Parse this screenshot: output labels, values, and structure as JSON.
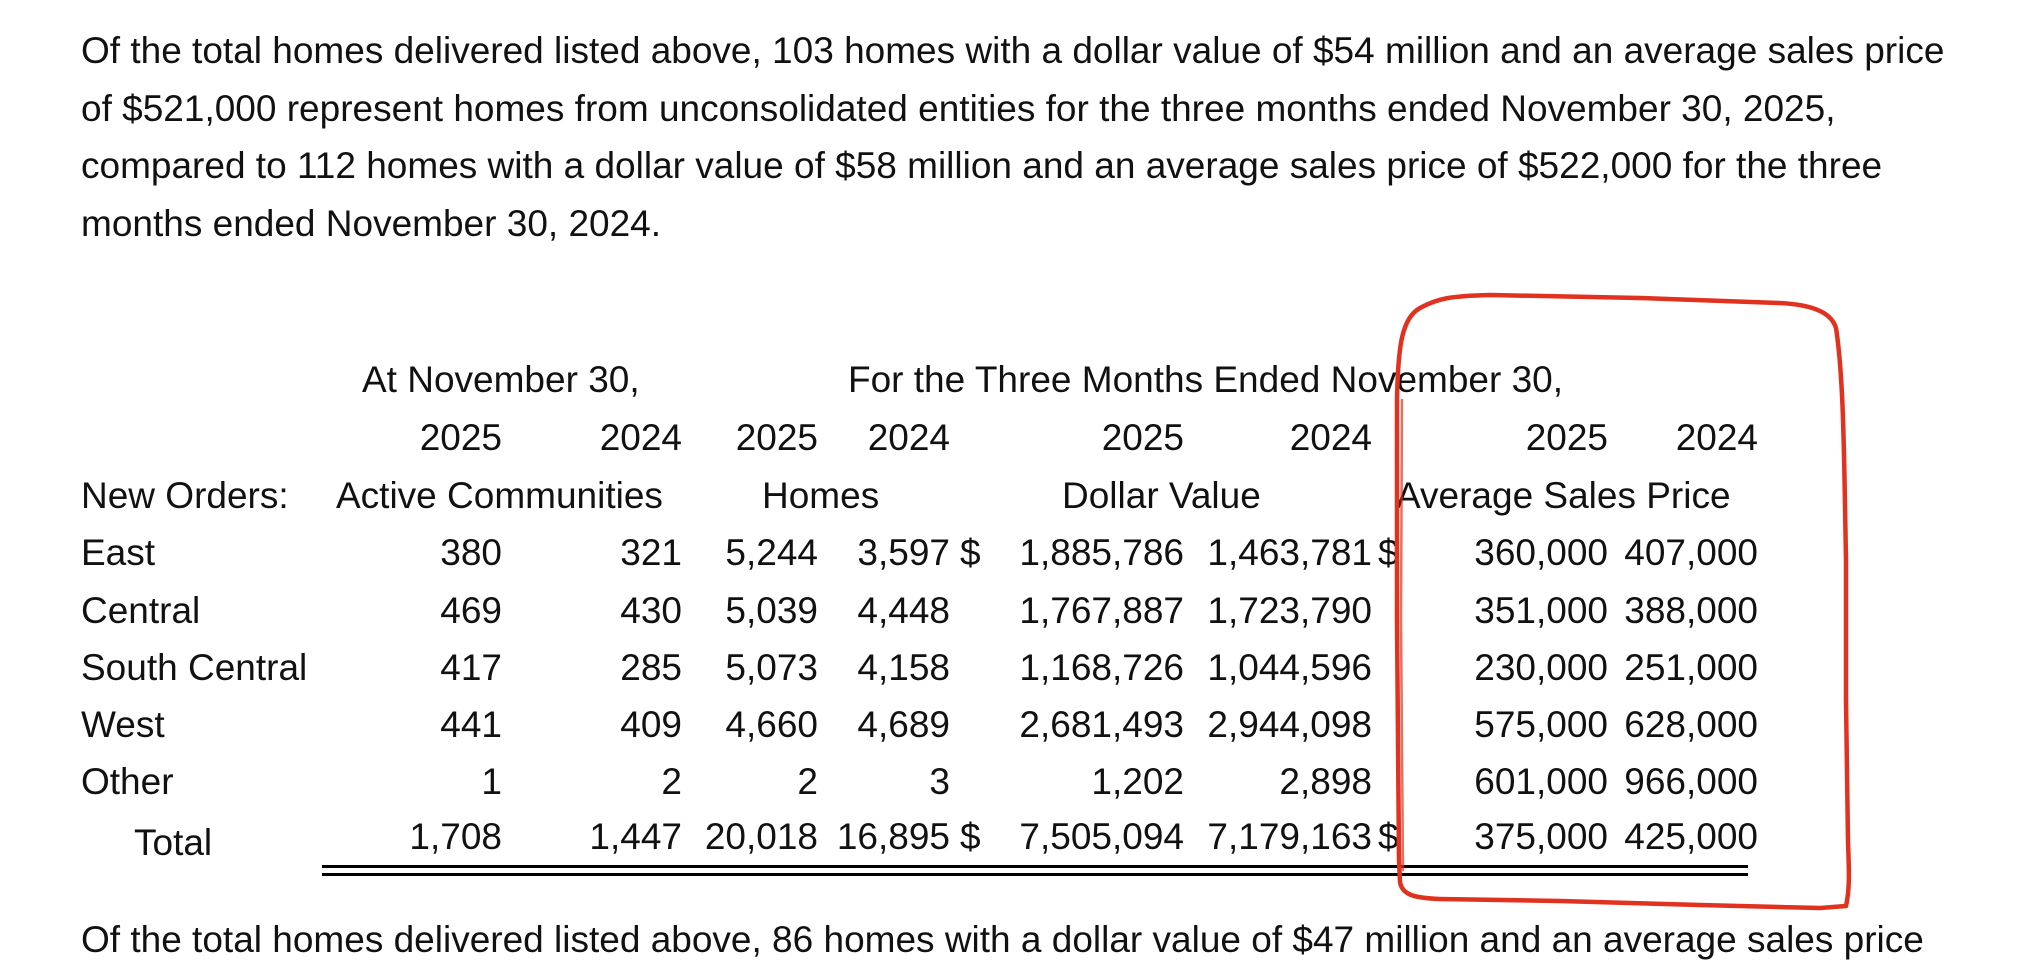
{
  "paragraph": "Of the total homes delivered listed above, 103 homes with a dollar value of $54 million and an average sales price of $521,000 represent homes from unconsolidated entities for the three months ended November 30, 2025, compared to 112 homes with a dollar value of $58 million and an average sales price of $522,000 for the three months ended November 30, 2024.",
  "table": {
    "group_headers": {
      "at_date": "At November 30,",
      "three_months": "For the Three Months Ended November 30,"
    },
    "years": {
      "ac_2025": "2025",
      "ac_2024": "2024",
      "h_2025": "2025",
      "h_2024": "2024",
      "dv_2025": "2025",
      "dv_2024": "2024",
      "asp_2025": "2025",
      "asp_2024": "2024"
    },
    "section_label": "New Orders:",
    "col_labels": {
      "active_communities": "Active Communities",
      "homes": "Homes",
      "dollar_value": "Dollar Value",
      "average_sales_price": "Average Sales Price"
    },
    "dollar_sign": "$",
    "rows": [
      {
        "label": "East",
        "ac_2025": "380",
        "ac_2024": "321",
        "h_2025": "5,244",
        "h_2024": "3,597",
        "dv_2025": "1,885,786",
        "dv_2024": "1,463,781",
        "asp_2025": "360,000",
        "asp_2024": "407,000"
      },
      {
        "label": "Central",
        "ac_2025": "469",
        "ac_2024": "430",
        "h_2025": "5,039",
        "h_2024": "4,448",
        "dv_2025": "1,767,887",
        "dv_2024": "1,723,790",
        "asp_2025": "351,000",
        "asp_2024": "388,000"
      },
      {
        "label": "South Central",
        "ac_2025": "417",
        "ac_2024": "285",
        "h_2025": "5,073",
        "h_2024": "4,158",
        "dv_2025": "1,168,726",
        "dv_2024": "1,044,596",
        "asp_2025": "230,000",
        "asp_2024": "251,000"
      },
      {
        "label": "West",
        "ac_2025": "441",
        "ac_2024": "409",
        "h_2025": "4,660",
        "h_2024": "4,689",
        "dv_2025": "2,681,493",
        "dv_2024": "2,944,098",
        "asp_2025": "575,000",
        "asp_2024": "628,000"
      },
      {
        "label": "Other",
        "ac_2025": "1",
        "ac_2024": "2",
        "h_2025": "2",
        "h_2024": "3",
        "dv_2025": "1,202",
        "dv_2024": "2,898",
        "asp_2025": "601,000",
        "asp_2024": "966,000"
      }
    ],
    "total": {
      "label": "Total",
      "ac_2025": "1,708",
      "ac_2024": "1,447",
      "h_2025": "20,018",
      "h_2024": "16,895",
      "dv_2025": "7,505,094",
      "dv_2024": "7,179,163",
      "asp_2025": "375,000",
      "asp_2024": "425,000"
    }
  },
  "cutoff_line": "Of the total homes delivered listed above, 86 homes with a dollar value of $47 million and an average sales price",
  "annotation": {
    "color": "#e0321e"
  }
}
